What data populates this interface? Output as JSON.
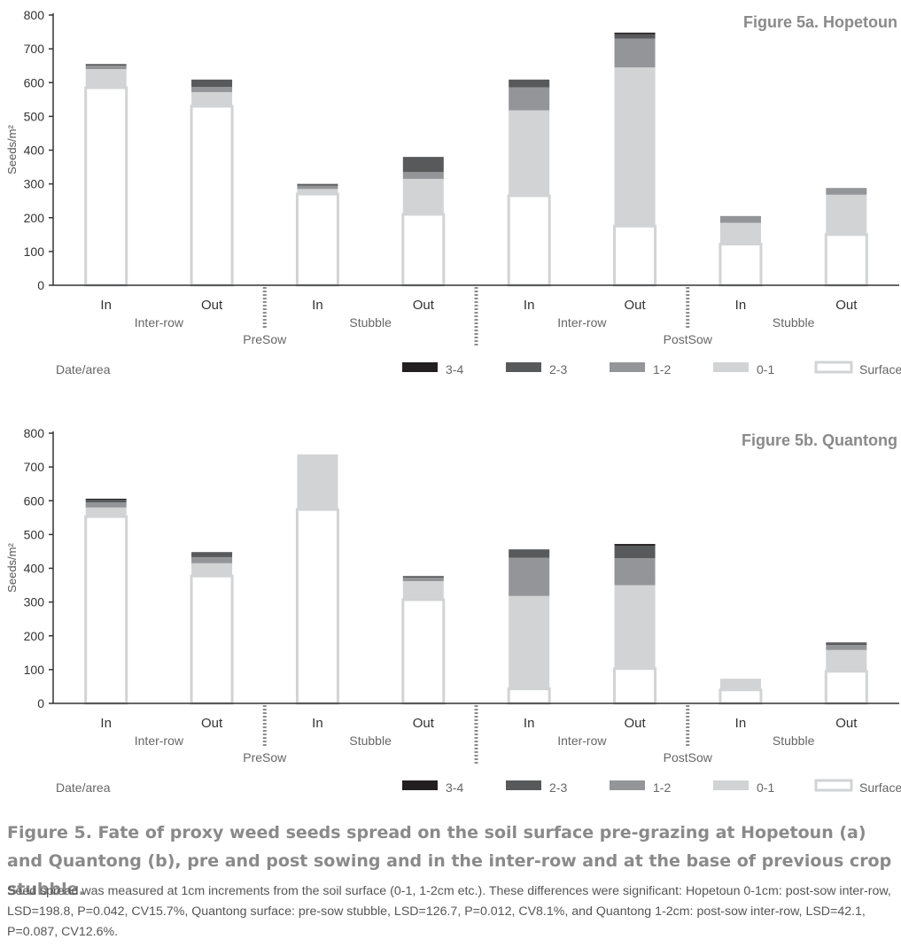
{
  "legend_title": "Date/area",
  "legend": [
    {
      "key": "3-4",
      "label": "3-4",
      "color": "#231f20"
    },
    {
      "key": "2-3",
      "label": "2-3",
      "color": "#58595b"
    },
    {
      "key": "1-2",
      "label": "1-2",
      "color": "#939598"
    },
    {
      "key": "0-1",
      "label": "0-1",
      "color": "#d1d3d4"
    },
    {
      "key": "surface",
      "label": "Surface",
      "color": "#ffffff"
    }
  ],
  "chart_data": [
    {
      "type": "bar",
      "stacked": true,
      "title": "Figure 5a. Hopetoun",
      "ylabel": "Seeds/m²",
      "ylim": [
        0,
        800
      ],
      "yticks": [
        0,
        100,
        200,
        300,
        400,
        500,
        600,
        700,
        800
      ],
      "categories": [
        "In",
        "Out",
        "In",
        "Out",
        "In",
        "Out",
        "In",
        "Out"
      ],
      "area_labels": [
        "Inter-row",
        "Stubble",
        "Inter-row",
        "Stubble"
      ],
      "date_labels": [
        "PreSow",
        "PostSow"
      ],
      "series": [
        {
          "name": "Surface",
          "values": [
            585,
            530,
            270,
            210,
            265,
            175,
            122,
            150
          ]
        },
        {
          "name": "0-1",
          "values": [
            55,
            42,
            15,
            105,
            253,
            470,
            63,
            118
          ]
        },
        {
          "name": "1-2",
          "values": [
            10,
            15,
            10,
            20,
            68,
            85,
            20,
            20
          ]
        },
        {
          "name": "2-3",
          "values": [
            5,
            22,
            5,
            45,
            23,
            13,
            0,
            0
          ]
        },
        {
          "name": "3-4",
          "values": [
            0,
            0,
            0,
            0,
            0,
            5,
            0,
            0
          ]
        }
      ]
    },
    {
      "type": "bar",
      "stacked": true,
      "title": "Figure 5b. Quantong",
      "ylabel": "Seeds/m²",
      "ylim": [
        0,
        800
      ],
      "yticks": [
        0,
        100,
        200,
        300,
        400,
        500,
        600,
        700,
        800
      ],
      "categories": [
        "In",
        "Out",
        "In",
        "Out",
        "In",
        "Out",
        "In",
        "Out"
      ],
      "area_labels": [
        "Inter-row",
        "Stubble",
        "Inter-row",
        "Stubble"
      ],
      "date_labels": [
        "PreSow",
        "PostSow"
      ],
      "series": [
        {
          "name": "Surface",
          "values": [
            553,
            377,
            574,
            307,
            43,
            103,
            40,
            95
          ]
        },
        {
          "name": "0-1",
          "values": [
            27,
            38,
            163,
            55,
            275,
            247,
            33,
            63
          ]
        },
        {
          "name": "1-2",
          "values": [
            15,
            18,
            0,
            10,
            113,
            80,
            0,
            15
          ]
        },
        {
          "name": "2-3",
          "values": [
            8,
            15,
            0,
            5,
            25,
            37,
            0,
            5
          ]
        },
        {
          "name": "3-4",
          "values": [
            3,
            0,
            0,
            0,
            0,
            5,
            0,
            2
          ]
        }
      ]
    }
  ],
  "caption": {
    "title": "Figure 5. Fate of proxy weed seeds spread on the soil surface pre-grazing at Hopetoun (a) and Quantong (b), pre and post sowing and in the inter-row and at the base of previous crop stubble.",
    "body": "Seed spread was measured at 1cm increments from the soil surface (0-1, 1-2cm etc.). These differences were significant: Hopetoun 0-1cm: post-sow inter-row, LSD=198.8, P=0.042, CV15.7%, Quantong surface: pre-sow stubble, LSD=126.7, P=0.012, CV8.1%, and Quantong 1-2cm: post-sow inter-row, LSD=42.1, P=0.087, CV12.6%."
  }
}
